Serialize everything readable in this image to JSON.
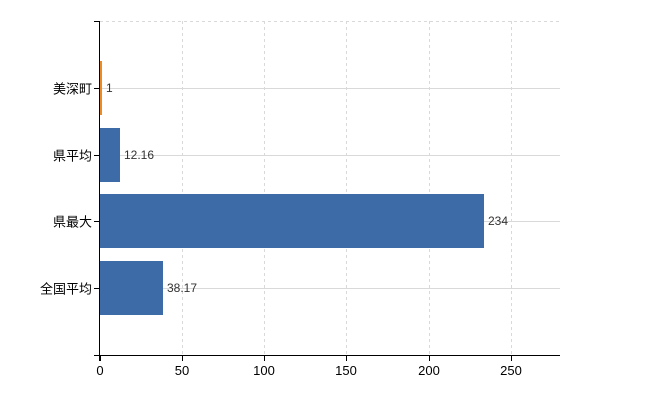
{
  "chart_data": {
    "type": "bar",
    "orientation": "horizontal",
    "title": "",
    "categories": [
      "美深町",
      "県平均",
      "県最大",
      "全国平均"
    ],
    "values": [
      1,
      12.16,
      234,
      38.17
    ],
    "value_labels": [
      "1",
      "12.16",
      "234",
      "38.17"
    ],
    "highlight_index": 0,
    "x_ticks": [
      0,
      50,
      100,
      150,
      200,
      250
    ],
    "x_tick_labels": [
      "0",
      "50",
      "100",
      "150",
      "200",
      "250"
    ],
    "xlim": [
      0,
      280
    ],
    "legend": "none",
    "grid": {
      "horizontal_lines": "solid",
      "vertical_lines": "dashed",
      "top_border": "dashed"
    },
    "colors": {
      "bar_default": "#3c6ba8",
      "bar_highlight": "#ee8a22",
      "gridline": "#d9d9d9",
      "axis": "#000000",
      "value_label_text": "#333333",
      "axis_label_text": "#000000",
      "background": "#ffffff"
    }
  }
}
